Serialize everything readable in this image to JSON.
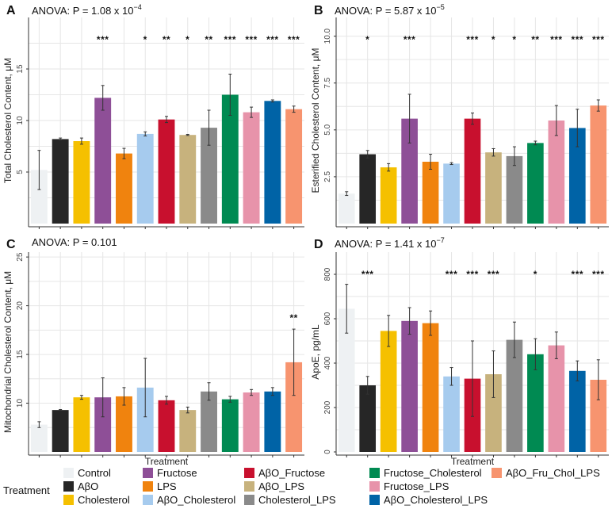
{
  "colors": {
    "Control": "#eef1f3",
    "AβO": "#262626",
    "Cholesterol": "#f5c000",
    "Fructose": "#8e4f97",
    "LPS": "#f0830e",
    "AβO_Cholesterol": "#a6cbee",
    "AβO_Fructose": "#c8102e",
    "AβO_LPS": "#c7b27d",
    "Cholesterol_LPS": "#8a8a8a",
    "Fructose_Cholesterol": "#008a52",
    "Fructose_LPS": "#e793aa",
    "AβO_Cholesterol_LPS": "#0063a6",
    "AβO_Fru_Chol_LPS": "#f7946f"
  },
  "legend": {
    "title": "Treatment",
    "items": [
      "Control",
      "AβO",
      "Cholesterol",
      "Fructose",
      "LPS",
      "AβO_Cholesterol",
      "AβO_Fructose",
      "AβO_LPS",
      "Cholesterol_LPS",
      "Fructose_Cholesterol",
      "Fructose_LPS",
      "AβO_Cholesterol_LPS",
      "AβO_Fru_Chol_LPS"
    ]
  },
  "chart_data": [
    {
      "panel": "A",
      "type": "bar",
      "anova_prefix": "ANOVA: P = 1.08 x 10",
      "anova_exp": "−4",
      "xlabel": "",
      "ylabel": "Total Cholesterol Content, μM",
      "ylim": [
        0,
        20
      ],
      "yticks": [
        5,
        10,
        15
      ],
      "categories": [
        "Control",
        "AβO",
        "Cholesterol",
        "Fructose",
        "LPS",
        "AβO_Cholesterol",
        "AβO_Fructose",
        "AβO_LPS",
        "Cholesterol_LPS",
        "Fructose_Cholesterol",
        "Fructose_LPS",
        "AβO_Cholesterol_LPS",
        "AβO_Fru_Chol_LPS"
      ],
      "values": [
        5.2,
        8.2,
        8.0,
        12.2,
        6.8,
        8.7,
        10.1,
        8.6,
        9.3,
        12.5,
        10.8,
        11.9,
        11.1
      ],
      "errors": [
        1.9,
        0.1,
        0.3,
        1.2,
        0.5,
        0.2,
        0.3,
        0.05,
        1.7,
        2.0,
        0.5,
        0.1,
        0.3
      ],
      "significance": [
        "",
        "",
        "",
        "***",
        "",
        "*",
        "**",
        "*",
        "**",
        "***",
        "***",
        "***",
        "***"
      ]
    },
    {
      "panel": "B",
      "type": "bar",
      "anova_prefix": "ANOVA: P = 5.87 x 10",
      "anova_exp": "−5",
      "xlabel": "",
      "ylabel": "Esterified Cholesterol Content, μM",
      "ylim": [
        0,
        11
      ],
      "yticks": [
        2.5,
        5.0,
        7.5,
        10.0
      ],
      "ytick_labels": [
        "2.5",
        "5.0",
        "7.5",
        "10.0"
      ],
      "categories": [
        "Control",
        "AβO",
        "Cholesterol",
        "Fructose",
        "LPS",
        "AβO_Cholesterol",
        "AβO_Fructose",
        "AβO_LPS",
        "Cholesterol_LPS",
        "Fructose_Cholesterol",
        "Fructose_LPS",
        "AβO_Cholesterol_LPS",
        "AβO_Fru_Chol_LPS"
      ],
      "values": [
        1.6,
        3.7,
        3.0,
        5.6,
        3.3,
        3.2,
        5.6,
        3.8,
        3.6,
        4.3,
        5.5,
        5.1,
        6.3
      ],
      "errors": [
        0.1,
        0.2,
        0.2,
        1.3,
        0.4,
        0.05,
        0.3,
        0.2,
        0.5,
        0.1,
        0.8,
        1.0,
        0.3
      ],
      "significance": [
        "",
        "*",
        "",
        "***",
        "",
        "",
        "***",
        "*",
        "*",
        "**",
        "***",
        "***",
        "***"
      ]
    },
    {
      "panel": "C",
      "type": "bar",
      "anova_prefix": "ANOVA:  P  =  0.101",
      "anova_exp": "",
      "xlabel": "Treatment",
      "ylabel": "Mitochondrial Cholesterol Content, μM",
      "ylim": [
        5,
        25.5
      ],
      "yticks": [
        10,
        15,
        20,
        25
      ],
      "categories": [
        "Control",
        "AβO",
        "Cholesterol",
        "Fructose",
        "LPS",
        "AβO_Cholesterol",
        "AβO_Fructose",
        "AβO_LPS",
        "Cholesterol_LPS",
        "Fructose_Cholesterol",
        "Fructose_LPS",
        "AβO_Cholesterol_LPS",
        "AβO_Fru_Chol_LPS"
      ],
      "values": [
        7.8,
        9.3,
        10.6,
        10.6,
        10.7,
        11.6,
        10.3,
        9.3,
        11.2,
        10.4,
        11.1,
        11.2,
        14.2
      ],
      "errors": [
        0.3,
        0.05,
        0.2,
        2.0,
        0.9,
        3.0,
        0.4,
        0.3,
        0.9,
        0.3,
        0.3,
        0.4,
        3.4
      ],
      "significance": [
        "",
        "",
        "",
        "",
        "",
        "",
        "",
        "",
        "",
        "",
        "",
        "",
        "**"
      ]
    },
    {
      "panel": "D",
      "type": "bar",
      "anova_prefix": "ANOVA: P = 1.41 x 10",
      "anova_exp": "−7",
      "xlabel": "Treatment",
      "ylabel": "ApoE, pg/mL",
      "ylim": [
        0,
        900
      ],
      "yticks": [
        0,
        200,
        400,
        600,
        800
      ],
      "categories": [
        "Control",
        "AβO",
        "Cholesterol",
        "Fructose",
        "LPS",
        "AβO_Cholesterol",
        "AβO_Fructose",
        "AβO_LPS",
        "Cholesterol_LPS",
        "Fructose_Cholesterol",
        "Fructose_LPS",
        "AβO_Cholesterol_LPS",
        "AβO_Fru_Chol_LPS"
      ],
      "values": [
        645,
        300,
        545,
        590,
        580,
        340,
        330,
        350,
        505,
        440,
        480,
        365,
        325
      ],
      "errors": [
        110,
        40,
        70,
        60,
        55,
        40,
        170,
        105,
        80,
        70,
        60,
        45,
        90
      ],
      "significance": [
        "",
        "***",
        "",
        "",
        "",
        "***",
        "***",
        "***",
        "",
        "*",
        "",
        "***",
        "***"
      ]
    }
  ]
}
